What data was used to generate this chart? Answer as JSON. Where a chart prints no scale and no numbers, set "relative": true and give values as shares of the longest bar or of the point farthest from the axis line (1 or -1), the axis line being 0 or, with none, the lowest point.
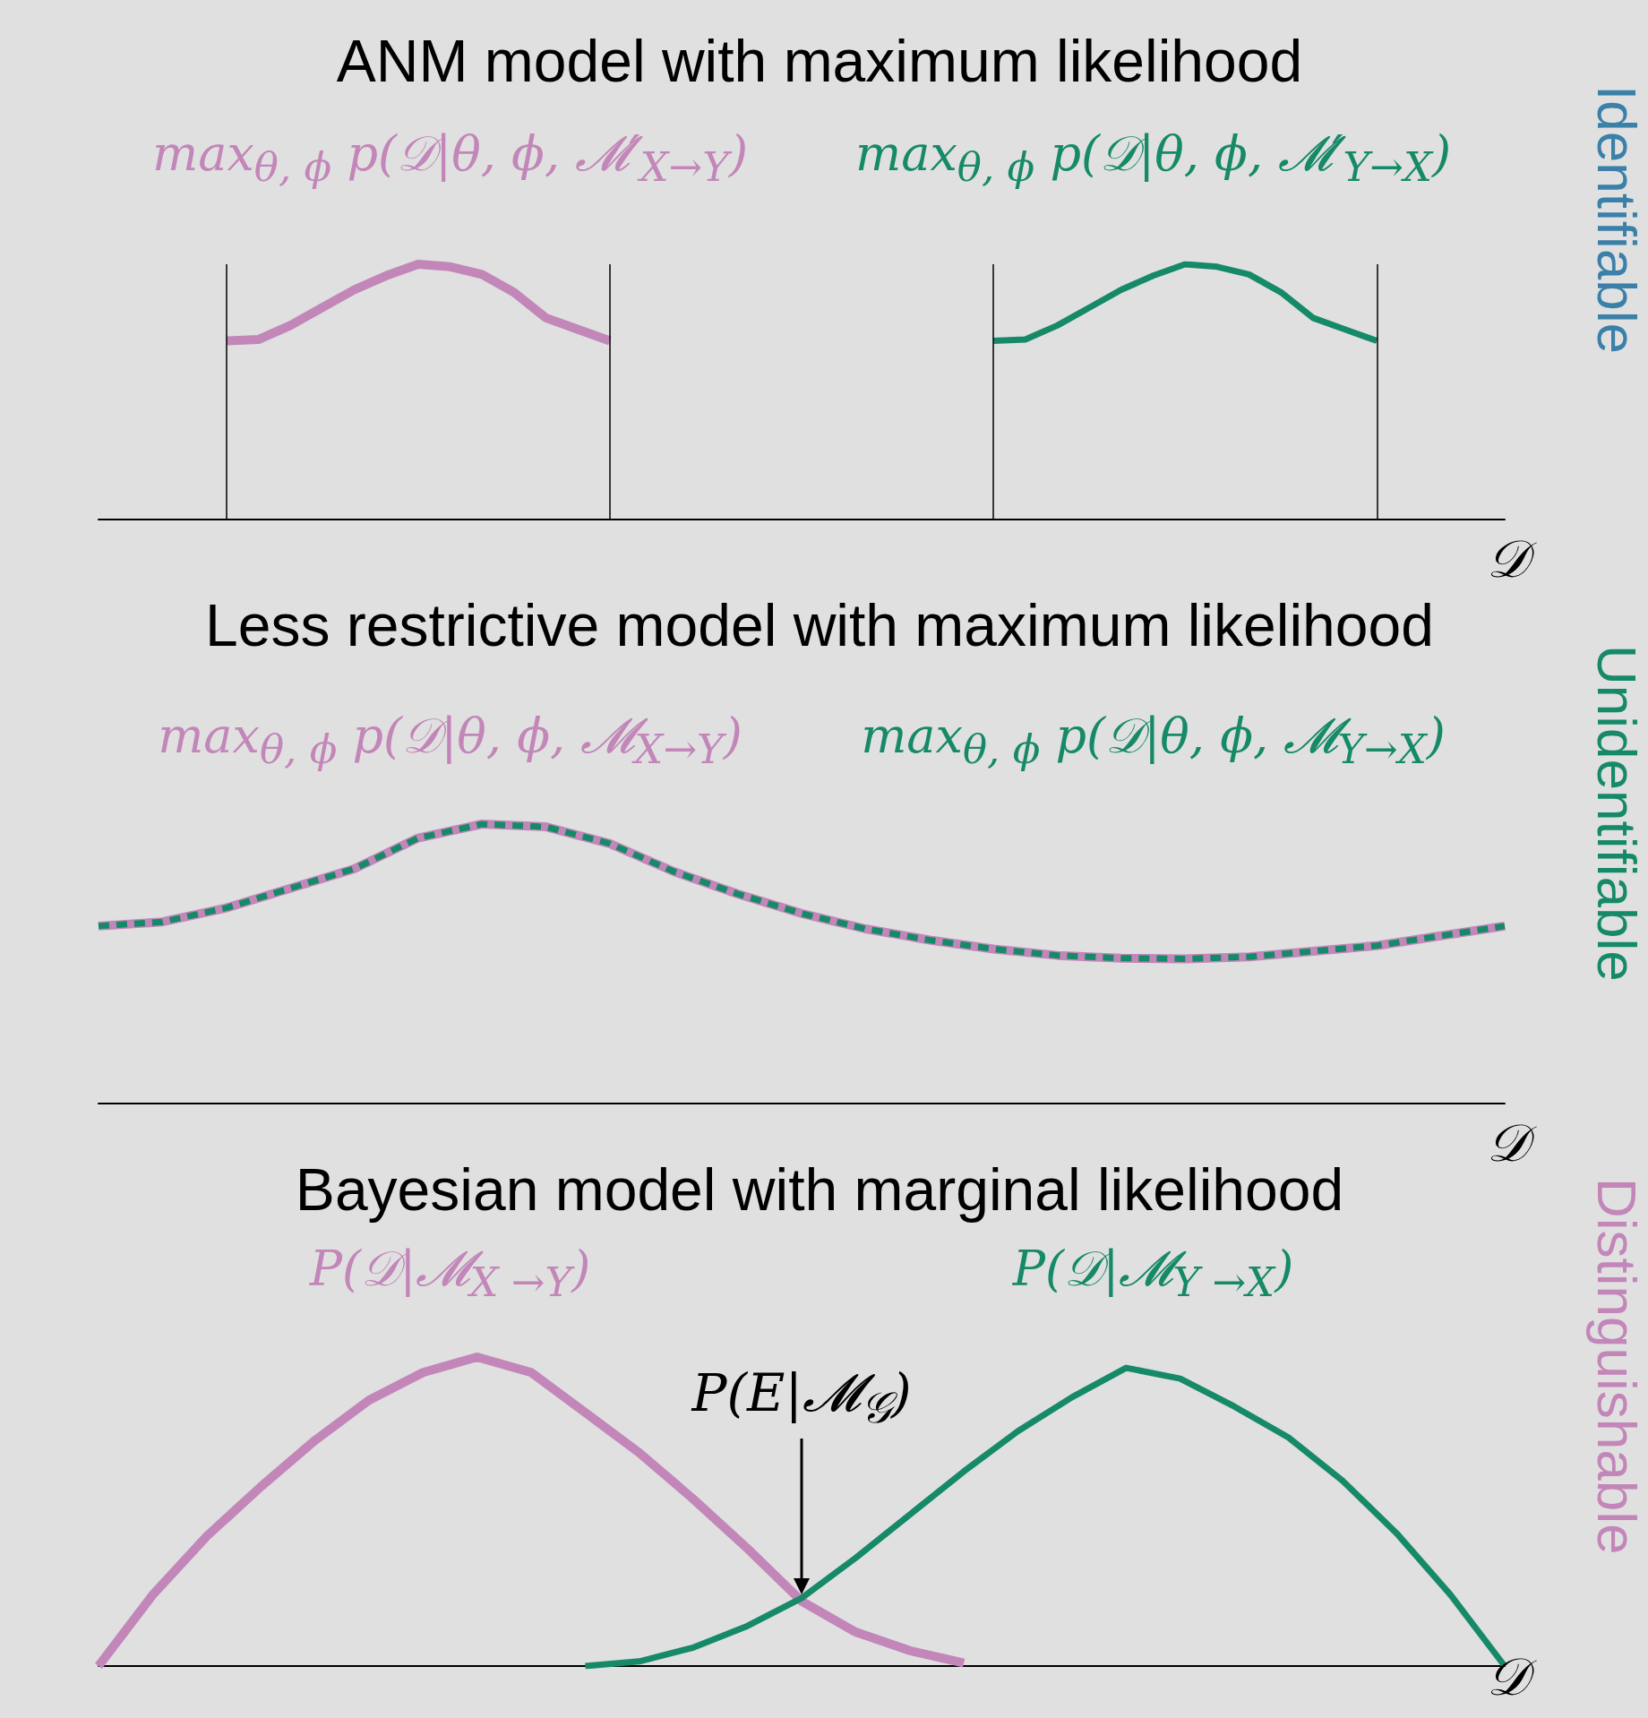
{
  "chart_data": [
    {
      "type": "line",
      "title": "ANM model with maximum likelihood",
      "xlabel": "𝒟",
      "relative": true,
      "marker": "none",
      "grid": "x",
      "annotations": [
        "Identifiable"
      ],
      "categories": [
        null,
        null,
        null,
        null,
        null,
        null,
        null,
        null,
        null,
        null,
        null,
        null,
        null,
        null,
        null,
        null,
        null,
        null,
        null,
        null,
        null,
        null,
        null,
        null,
        null,
        null,
        null,
        null,
        null,
        null,
        null,
        null,
        null,
        null,
        null,
        null,
        null,
        null,
        null,
        null,
        null,
        null,
        null,
        null,
        null
      ],
      "series": [
        {
          "name": "max$_{θ, ϕ}$ p(𝒟|θ, ϕ, 𝓜′$_{X→Y}$)",
          "color": "#c386b9",
          "values": [
            null,
            null,
            null,
            null,
            0.7,
            0.705,
            0.76,
            0.83,
            0.9,
            0.955,
            1.0,
            0.99,
            0.96,
            0.89,
            0.79,
            0.745,
            0.7,
            null,
            null,
            null,
            null,
            null,
            null,
            null,
            null,
            null,
            null,
            null,
            null,
            null,
            null,
            null,
            null,
            null,
            null,
            null,
            null,
            null,
            null,
            null,
            null,
            null,
            null,
            null,
            null
          ]
        },
        {
          "name": "max$_{θ, ϕ}$ p(𝒟|θ, ϕ, 𝓜′$_{Y→X}$)",
          "color": "#168a68",
          "values": [
            null,
            null,
            null,
            null,
            null,
            null,
            null,
            null,
            null,
            null,
            null,
            null,
            null,
            null,
            null,
            null,
            null,
            null,
            null,
            null,
            null,
            null,
            null,
            null,
            null,
            null,
            null,
            null,
            0.7,
            0.705,
            0.76,
            0.83,
            0.9,
            0.955,
            1.0,
            0.99,
            0.96,
            0.89,
            0.79,
            0.745,
            0.7,
            null,
            null,
            null,
            null
          ]
        }
      ]
    },
    {
      "type": "line",
      "title": "Less restrictive model with maximum likelihood",
      "xlabel": "𝒟",
      "relative": true,
      "marker": "none",
      "annotations": [
        "Unidentifiable"
      ],
      "categories": [
        null,
        null,
        null,
        null,
        null,
        null,
        null,
        null,
        null,
        null,
        null,
        null,
        null,
        null,
        null,
        null,
        null,
        null,
        null,
        null,
        null,
        null,
        null
      ],
      "series": [
        {
          "name": "max$_{θ, ϕ}$ p(𝒟|θ, ϕ, 𝓜$_{X→Y}$)",
          "color": "#c386b9",
          "line_style": "solid",
          "values": [
            0.635,
            0.65,
            0.7,
            0.77,
            0.84,
            0.95,
            1.0,
            0.99,
            0.93,
            0.83,
            0.75,
            0.68,
            0.625,
            0.585,
            0.553,
            0.53,
            0.52,
            0.518,
            0.525,
            0.545,
            0.565,
            0.6,
            0.635
          ]
        },
        {
          "name": "max$_{θ, ϕ}$ p(𝒟|θ, ϕ, 𝓜$_{Y→X}$)",
          "color": "#168a68",
          "line_style": "dashed",
          "values": [
            0.635,
            0.65,
            0.7,
            0.77,
            0.84,
            0.95,
            1.0,
            0.99,
            0.93,
            0.83,
            0.75,
            0.68,
            0.625,
            0.585,
            0.553,
            0.53,
            0.52,
            0.518,
            0.525,
            0.545,
            0.565,
            0.6,
            0.635
          ]
        }
      ]
    },
    {
      "type": "line",
      "title": "Bayesian model with marginal likelihood",
      "xlabel": "𝒟",
      "relative": true,
      "marker": "none",
      "annotations": [
        "Distinguishable",
        "P(E|𝓜$_{𝒢}$)"
      ],
      "categories": [
        null,
        null,
        null,
        null,
        null,
        null,
        null,
        null,
        null,
        null,
        null,
        null,
        null,
        null,
        null,
        null,
        null,
        null,
        null,
        null,
        null,
        null,
        null,
        null,
        null,
        null,
        null
      ],
      "series": [
        {
          "name": "P(𝒟|𝓜$_{X →Y}$)",
          "color": "#c386b9",
          "values": [
            0,
            0.23,
            0.42,
            0.58,
            0.73,
            0.86,
            0.95,
            1.0,
            0.95,
            0.82,
            0.69,
            0.54,
            0.38,
            0.21,
            0.11,
            0.05,
            0.01,
            null,
            null,
            null,
            null,
            null,
            null,
            null,
            null,
            null,
            null
          ]
        },
        {
          "name": "P(𝒟|𝓜$_{Y →X}$)",
          "color": "#168a68",
          "values": [
            null,
            null,
            null,
            null,
            null,
            null,
            null,
            null,
            null,
            0,
            0.015,
            0.06,
            0.13,
            0.22,
            0.35,
            0.49,
            0.63,
            0.76,
            0.87,
            0.965,
            0.93,
            0.84,
            0.74,
            0.6,
            0.43,
            0.23,
            0
          ]
        }
      ]
    }
  ]
}
